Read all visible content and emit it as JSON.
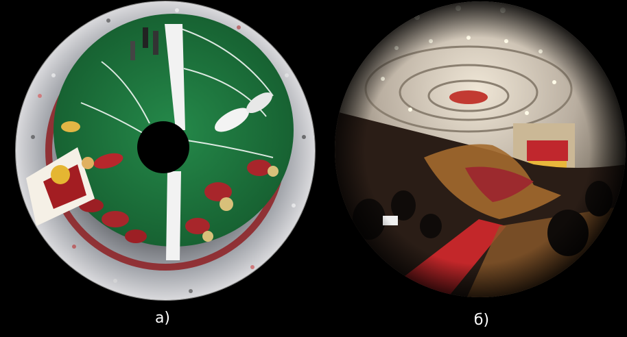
{
  "figure": {
    "panels": [
      {
        "id": "a",
        "caption": "а)",
        "subject": "stadium-fisheye"
      },
      {
        "id": "b",
        "caption": "б)",
        "subject": "hall-fisheye"
      }
    ],
    "colors": {
      "background": "#000000",
      "field_green": "#1f7a3a",
      "stripe_white": "#f2f2f2",
      "crowd": "#8b8e94",
      "jersey_red": "#9c1f24",
      "hall_ceiling": "#b9aea0",
      "hall_red_carpet": "#c3272a",
      "hall_wood": "#8b5a2b",
      "hall_shadow": "#1c1410"
    }
  }
}
